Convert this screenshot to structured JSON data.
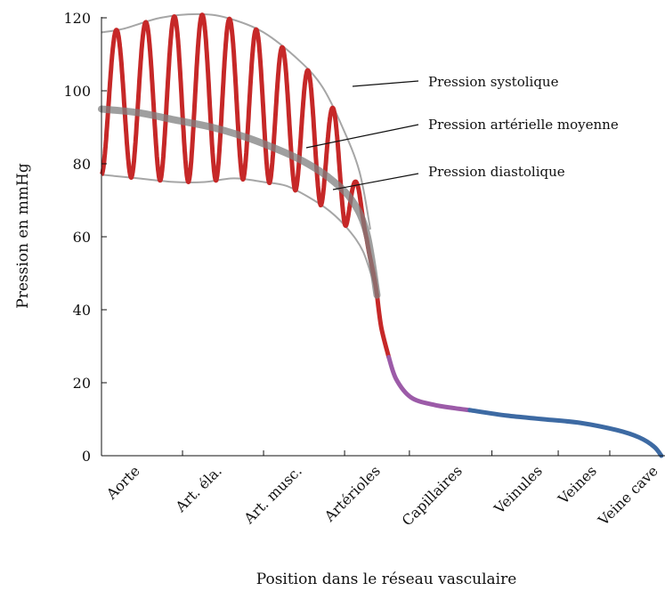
{
  "chart_data": {
    "type": "line",
    "title": "",
    "xlabel": "Position dans le réseau vasculaire",
    "ylabel": "Pression en mmHg",
    "ylim": [
      0,
      120
    ],
    "yticks": [
      0,
      20,
      40,
      60,
      80,
      100,
      120
    ],
    "x_range": [
      0,
      9
    ],
    "grid": false,
    "categories": [
      "Aorte",
      "Art. éla.",
      "Art. musc.",
      "Artérioles",
      "Capillaires",
      "Veinules",
      "Veines",
      "Veine cave"
    ],
    "category_positions": [
      0,
      1,
      2,
      3,
      4,
      5,
      6,
      7
    ],
    "segment_colors": {
      "arterial": "#c62828",
      "capillary": "#9c5ba8",
      "venous": "#3d6aa3",
      "envelope": "#a6a6a6",
      "mean": "#7f7f7f"
    },
    "series": [
      {
        "name": "Pression systolique",
        "x": [
          0,
          0.3,
          0.8,
          1.3,
          1.7,
          2.2,
          2.7,
          3.0,
          3.25,
          3.5,
          3.65
        ],
        "values": [
          116,
          117,
          120,
          121,
          120,
          116,
          108,
          101,
          91,
          78,
          62
        ]
      },
      {
        "name": "Pression artérielle moyenne",
        "x": [
          0,
          0.5,
          1.0,
          1.5,
          2.0,
          2.5,
          2.8,
          3.1,
          3.4,
          3.6,
          3.74
        ],
        "values": [
          95,
          94,
          92,
          90,
          87,
          83,
          80,
          76,
          70,
          61,
          44
        ]
      },
      {
        "name": "Pression diastolique",
        "x": [
          0,
          0.5,
          1.0,
          1.4,
          1.8,
          2.2,
          2.5,
          2.8,
          3.1,
          3.35,
          3.55,
          3.7
        ],
        "values": [
          77,
          76,
          75,
          75,
          76,
          75,
          74,
          71,
          67,
          62,
          56,
          47
        ]
      },
      {
        "name": "",
        "segment": "capillary",
        "x": [
          3.9,
          4.0,
          4.2,
          4.5,
          4.8,
          5.0
        ],
        "values": [
          27,
          21,
          16,
          14,
          13,
          12.5
        ]
      },
      {
        "name": "",
        "segment": "venous",
        "x": [
          5.0,
          5.5,
          6.0,
          6.5,
          7.0,
          7.3,
          7.5,
          7.6
        ],
        "values": [
          12.5,
          11,
          10,
          9,
          7,
          5,
          2.5,
          0
        ]
      }
    ]
  }
}
